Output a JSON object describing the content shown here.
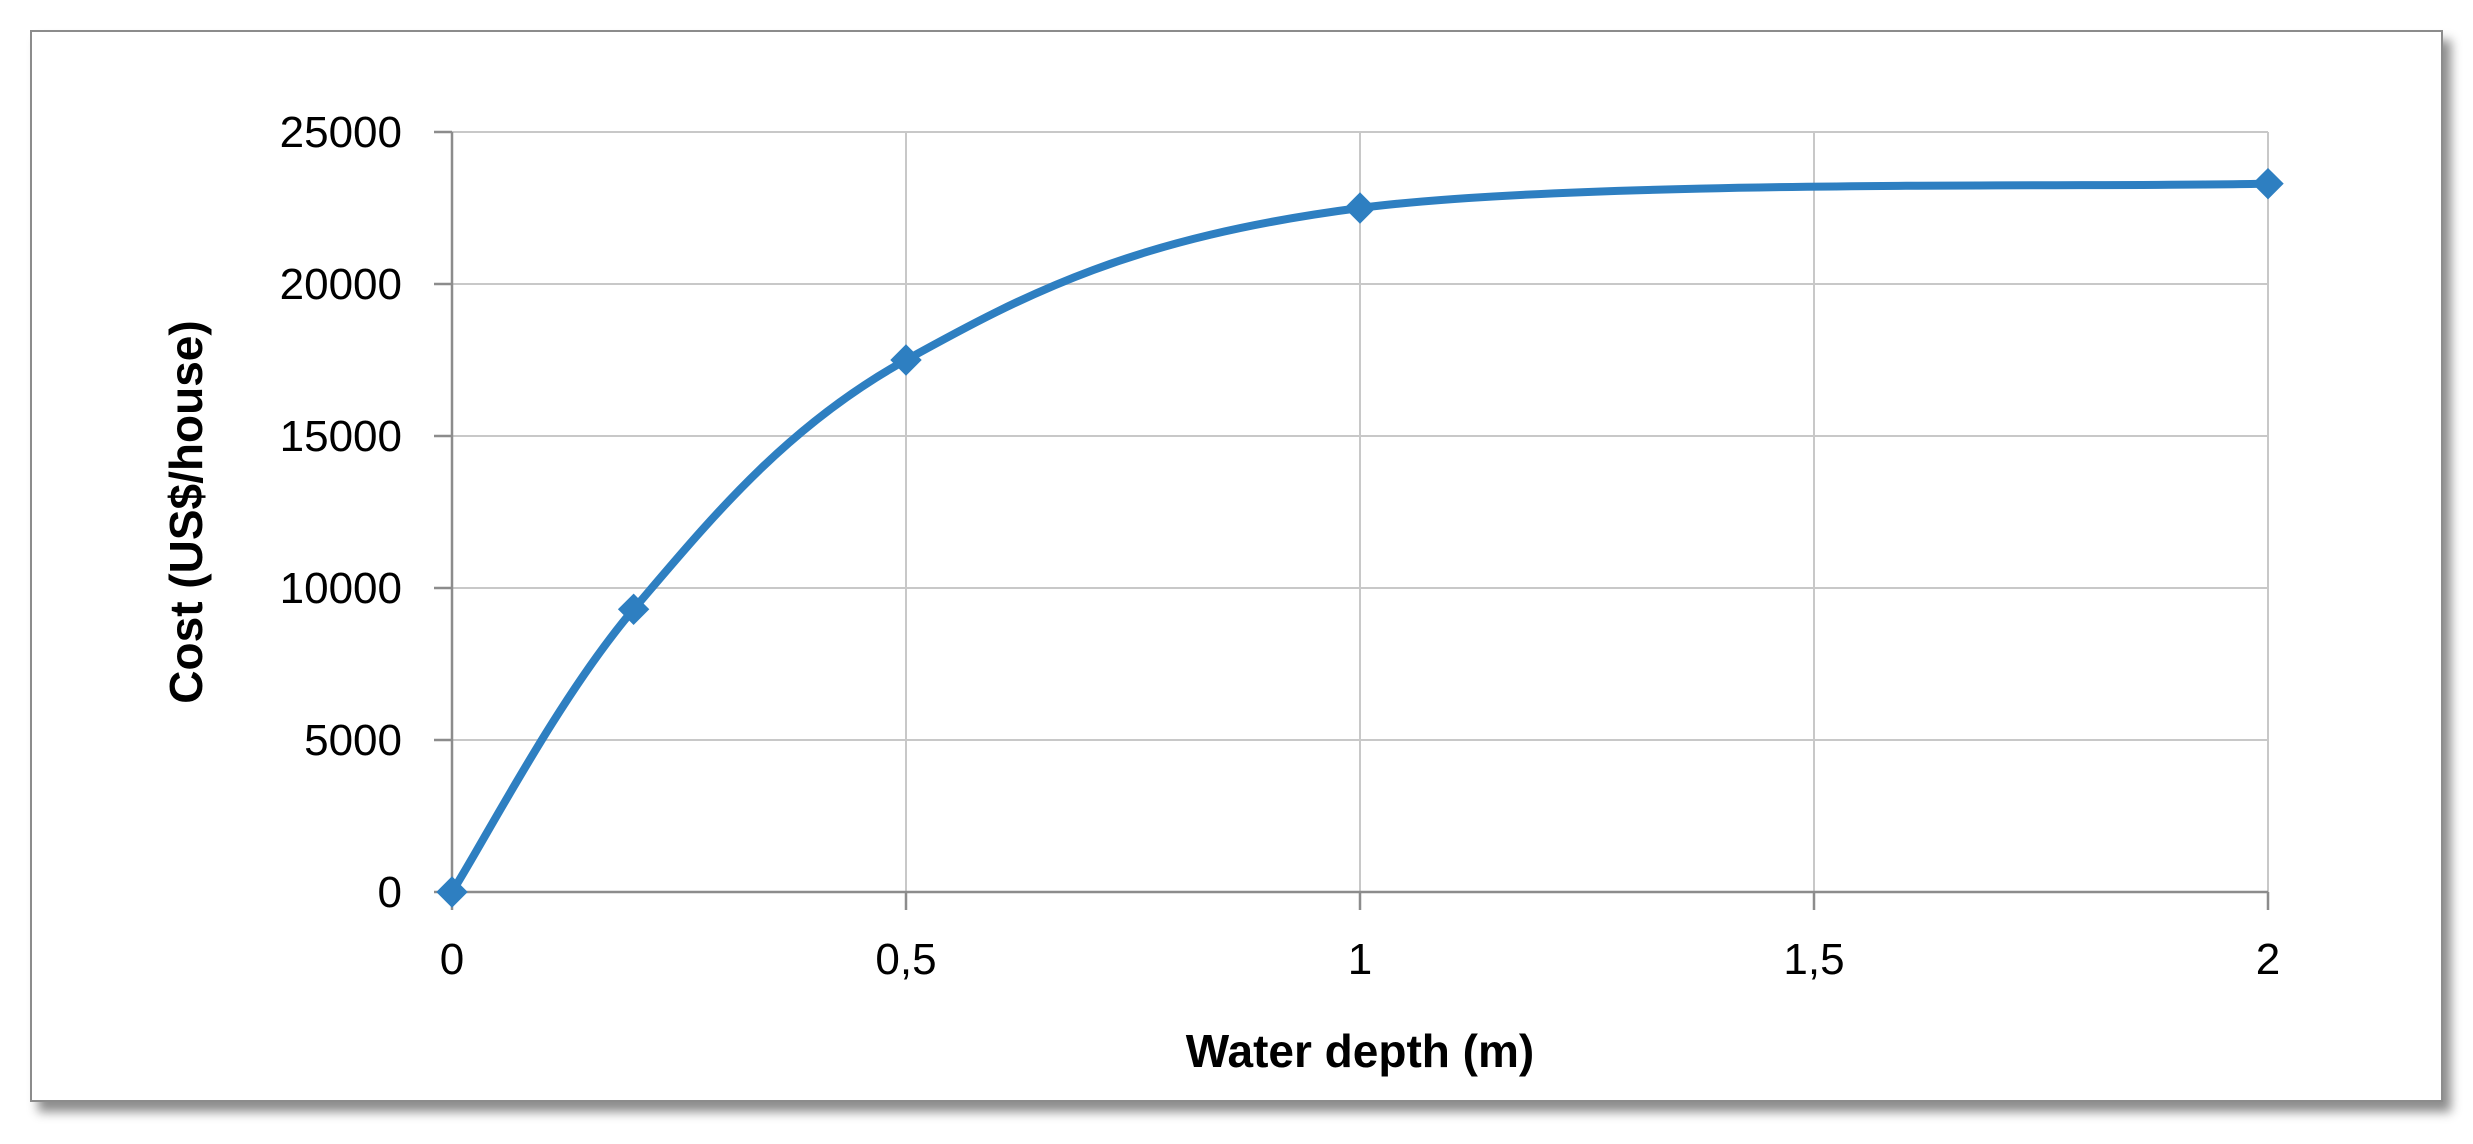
{
  "chart_data": {
    "type": "line",
    "title": "",
    "xlabel": "Water depth (m)",
    "ylabel": "Cost (US$/house)",
    "x_ticks": [
      "0",
      "0,5",
      "1",
      "1,5",
      "2"
    ],
    "x_tick_values": [
      0,
      0.5,
      1,
      1.5,
      2
    ],
    "y_ticks": [
      "0",
      "5000",
      "10000",
      "15000",
      "20000",
      "25000"
    ],
    "y_tick_values": [
      0,
      5000,
      10000,
      15000,
      20000,
      25000
    ],
    "xlim": [
      0,
      2
    ],
    "ylim": [
      0,
      25000
    ],
    "grid": true,
    "smooth": true,
    "marker": "diamond",
    "series": [
      {
        "color": "#2e7fc1",
        "x": [
          0,
          0.2,
          0.5,
          1,
          2
        ],
        "y": [
          0,
          9300,
          17500,
          22500,
          23300
        ]
      }
    ]
  }
}
